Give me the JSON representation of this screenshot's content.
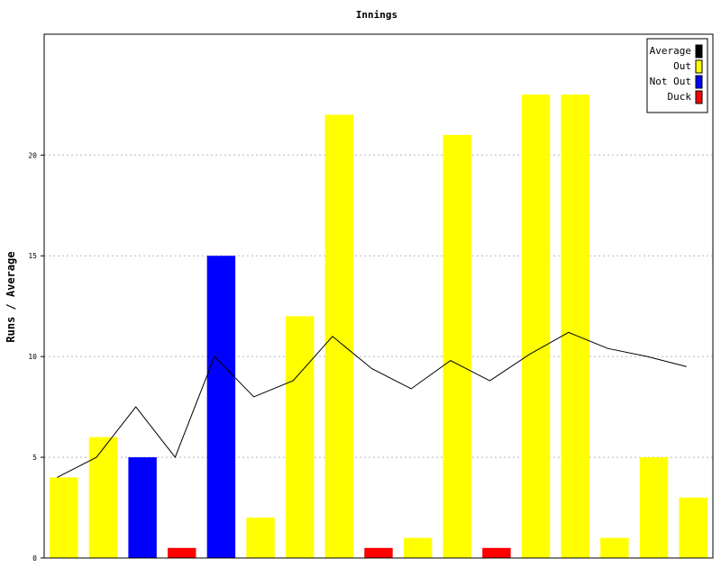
{
  "chart_data": {
    "type": "bar",
    "title": "Innings",
    "xlabel": "",
    "ylabel": "Runs / Average",
    "ylim": [
      0,
      26
    ],
    "yticks": [
      0,
      5,
      10,
      15,
      20
    ],
    "grid": true,
    "legend_position": "top-right",
    "legend": [
      {
        "label": "Average",
        "color": "#000000"
      },
      {
        "label": "Out",
        "color": "#ffff00"
      },
      {
        "label": "Not Out",
        "color": "#0000ff"
      },
      {
        "label": "Duck",
        "color": "#ff0000"
      }
    ],
    "bars": [
      {
        "value": 4,
        "status": "Out"
      },
      {
        "value": 6,
        "status": "Out"
      },
      {
        "value": 5,
        "status": "Not Out"
      },
      {
        "value": 0.5,
        "status": "Duck"
      },
      {
        "value": 15,
        "status": "Not Out"
      },
      {
        "value": 2,
        "status": "Out"
      },
      {
        "value": 12,
        "status": "Out"
      },
      {
        "value": 22,
        "status": "Out"
      },
      {
        "value": 0.5,
        "status": "Duck"
      },
      {
        "value": 1,
        "status": "Out"
      },
      {
        "value": 21,
        "status": "Out"
      },
      {
        "value": 0.5,
        "status": "Duck"
      },
      {
        "value": 23,
        "status": "Out"
      },
      {
        "value": 23,
        "status": "Out"
      },
      {
        "value": 1,
        "status": "Out"
      },
      {
        "value": 5,
        "status": "Out"
      },
      {
        "value": 3,
        "status": "Out"
      }
    ],
    "average": [
      4,
      5,
      7.5,
      5,
      10,
      8,
      8.8,
      11,
      9.4,
      8.4,
      9.8,
      8.8,
      10.1,
      11.2,
      10.4,
      10,
      9.5
    ]
  }
}
